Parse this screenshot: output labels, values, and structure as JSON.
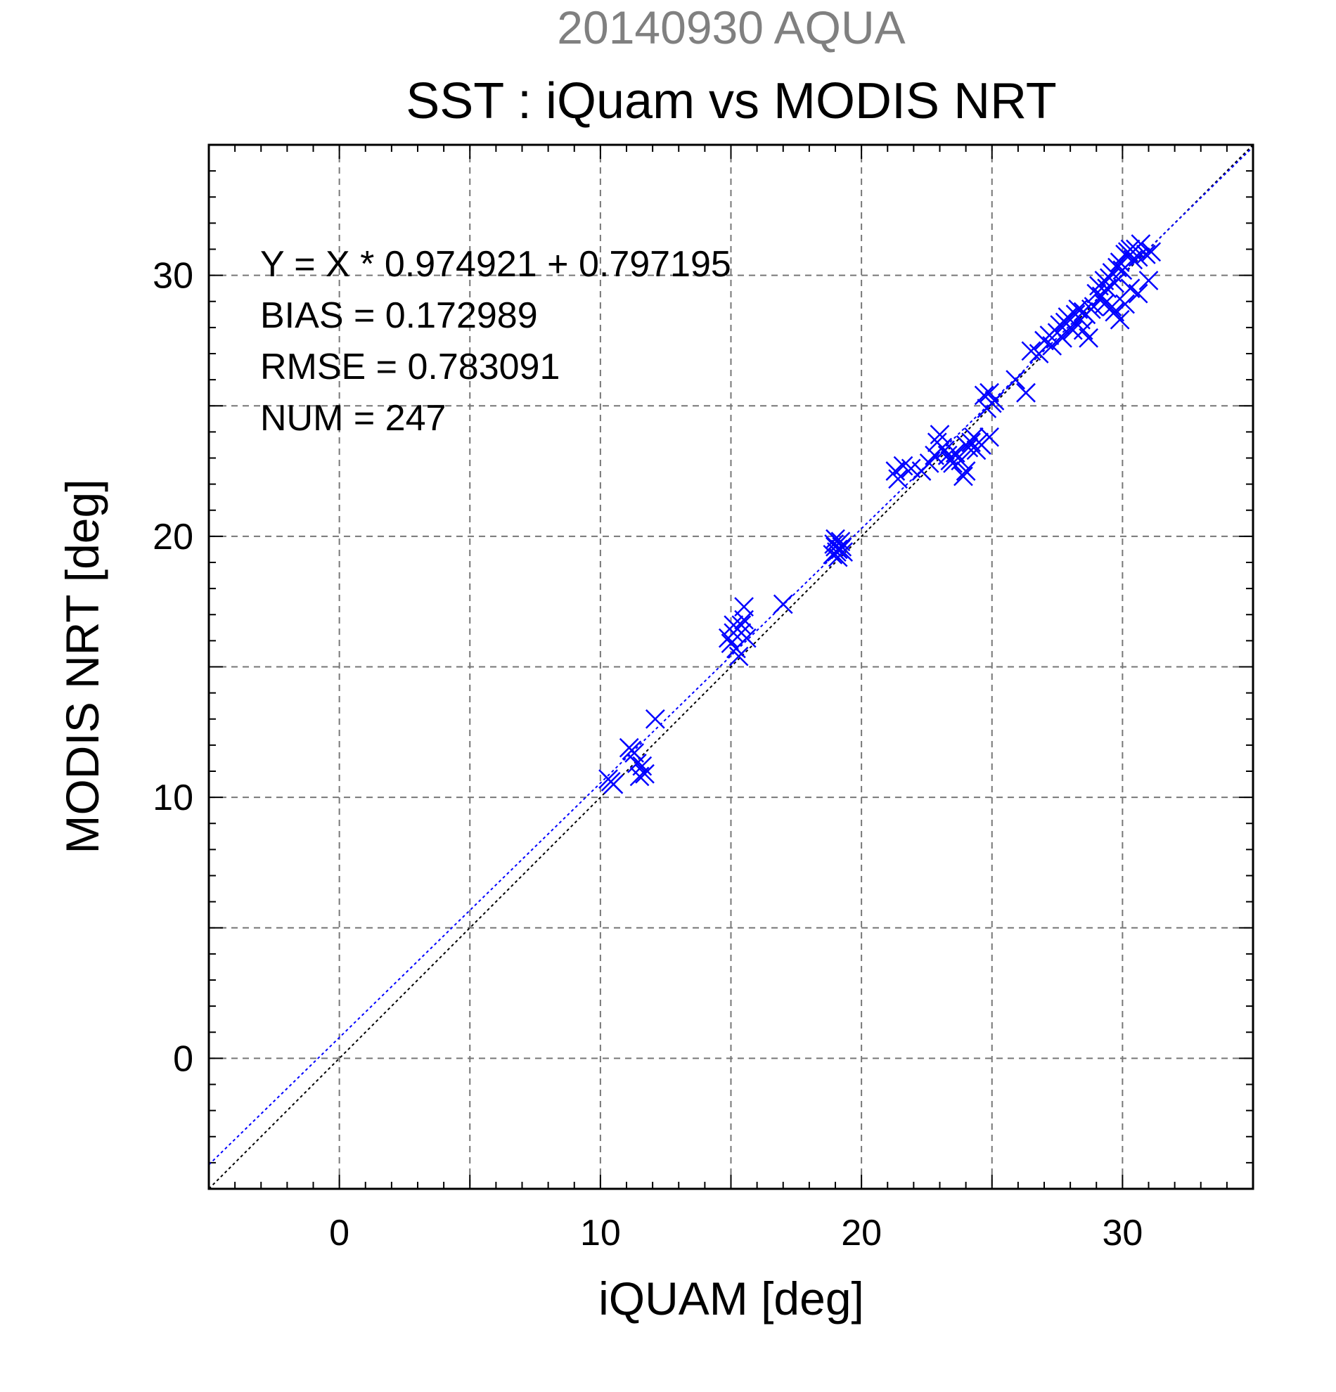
{
  "chart_data": {
    "type": "scatter",
    "supertitle": "20140930 AQUA",
    "title": "SST : iQuam vs MODIS NRT",
    "xlabel": "iQUAM [deg]",
    "ylabel": "MODIS NRT [deg]",
    "xlim": [
      -5,
      35
    ],
    "ylim": [
      -5,
      35
    ],
    "xticks": [
      0,
      10,
      20,
      30
    ],
    "yticks": [
      0,
      10,
      20,
      30
    ],
    "grid_step": 5,
    "grid": true,
    "stats": [
      "Y = X * 0.974921 + 0.797195",
      "BIAS = 0.172989",
      "RMSE = 0.783091",
      "NUM = 247"
    ],
    "fit": {
      "slope": 0.974921,
      "intercept": 0.797195
    },
    "colors": {
      "points": "#0000ff",
      "fit_line": "#0000ff",
      "identity_line": "#000000",
      "supertitle": "#808080"
    },
    "series": [
      {
        "marker": "x",
        "x": [
          10.4,
          10.5,
          10.3,
          11.2,
          11.1,
          11.3,
          11.6,
          11.7,
          11.5,
          12.1,
          11.4,
          14.9,
          15.0,
          15.1,
          15.2,
          15.4,
          15.5,
          15.3,
          15.6,
          15.1,
          15.5,
          15.4,
          17.0,
          18.9,
          19.0,
          19.1,
          19.2,
          19.3,
          19.0,
          19.1,
          18.95,
          19.2,
          19.05,
          19.25,
          21.3,
          21.4,
          21.6,
          21.9,
          22.3,
          22.6,
          22.8,
          22.9,
          23.0,
          23.1,
          23.2,
          23.3,
          23.4,
          23.5,
          23.6,
          23.8,
          23.9,
          24.0,
          24.1,
          24.2,
          24.3,
          24.4,
          24.5,
          24.6,
          24.7,
          24.8,
          24.9,
          25.0,
          25.1,
          24.0,
          24.9,
          25.9,
          26.3,
          26.5,
          26.8,
          27.0,
          27.2,
          27.3,
          27.5,
          27.6,
          27.7,
          27.8,
          27.9,
          28.0,
          28.1,
          28.2,
          28.3,
          28.4,
          28.5,
          28.6,
          28.8,
          28.9,
          29.0,
          29.1,
          29.2,
          29.3,
          29.4,
          29.5,
          29.6,
          29.7,
          29.8,
          29.9,
          30.0,
          30.1,
          30.2,
          30.3,
          30.4,
          30.5,
          30.6,
          30.7,
          30.9,
          31.1,
          28.7,
          29.6,
          30.3,
          30.1,
          29.9,
          29.7,
          30.6,
          31.0,
          28.5,
          29.3
        ],
        "y": [
          10.6,
          10.5,
          10.7,
          11.8,
          11.9,
          11.7,
          11.2,
          10.9,
          10.8,
          13.0,
          11.3,
          16.1,
          15.9,
          16.3,
          15.7,
          16.6,
          17.3,
          15.4,
          16.1,
          16.6,
          16.8,
          16.3,
          17.4,
          19.3,
          19.6,
          19.5,
          19.8,
          19.4,
          19.9,
          19.2,
          19.7,
          19.5,
          19.4,
          19.6,
          22.5,
          22.2,
          22.7,
          22.6,
          22.5,
          22.8,
          23.1,
          23.6,
          23.9,
          23.4,
          23.3,
          23.1,
          22.9,
          22.8,
          23.2,
          22.9,
          22.3,
          23.5,
          23.4,
          23.6,
          23.8,
          23.3,
          23.6,
          23.5,
          25.4,
          24.9,
          25.5,
          25.1,
          25.2,
          22.5,
          23.8,
          26.0,
          25.5,
          27.1,
          27.0,
          27.5,
          27.7,
          27.3,
          27.8,
          28.1,
          27.6,
          28.2,
          28.4,
          28.0,
          27.9,
          28.5,
          28.7,
          28.3,
          28.6,
          28.5,
          28.7,
          28.8,
          29.3,
          29.6,
          29.2,
          29.8,
          29.5,
          29.9,
          30.1,
          29.7,
          30.3,
          30.5,
          30.2,
          30.8,
          30.9,
          31.0,
          30.6,
          31.0,
          30.7,
          31.2,
          30.8,
          30.9,
          27.6,
          28.8,
          29.5,
          28.9,
          28.3,
          28.6,
          29.3,
          29.8,
          27.9,
          28.9
        ]
      }
    ]
  }
}
